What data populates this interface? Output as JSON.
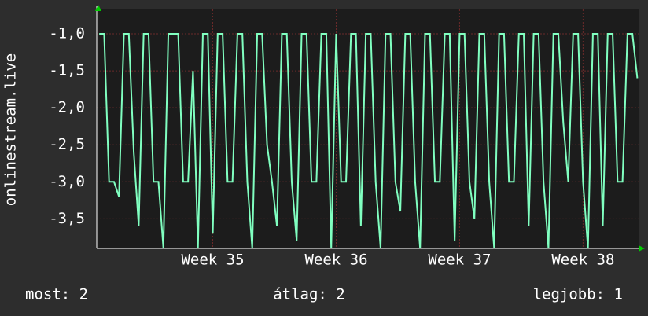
{
  "chart_data": {
    "type": "line",
    "y_label": "onlinestream.live",
    "color": "#80ffc0",
    "grid": true,
    "x": [
      34.08,
      34.12,
      34.16,
      34.2,
      34.24,
      34.28,
      34.32,
      34.36,
      34.4,
      34.44,
      34.48,
      34.52,
      34.56,
      34.6,
      34.64,
      34.68,
      34.72,
      34.76,
      34.8,
      34.84,
      34.88,
      34.92,
      34.96,
      35,
      35.04,
      35.08,
      35.12,
      35.16,
      35.2,
      35.24,
      35.28,
      35.32,
      35.36,
      35.4,
      35.44,
      35.48,
      35.52,
      35.56,
      35.6,
      35.64,
      35.68,
      35.72,
      35.76,
      35.8,
      35.84,
      35.88,
      35.92,
      35.96,
      36,
      36.04,
      36.08,
      36.12,
      36.16,
      36.2,
      36.24,
      36.28,
      36.32,
      36.36,
      36.4,
      36.44,
      36.48,
      36.52,
      36.56,
      36.6,
      36.64,
      36.68,
      36.72,
      36.76,
      36.8,
      36.84,
      36.88,
      36.92,
      36.96,
      37,
      37.04,
      37.08,
      37.12,
      37.16,
      37.2,
      37.24,
      37.28,
      37.32,
      37.36,
      37.4,
      37.44,
      37.48,
      37.52,
      37.56,
      37.6,
      37.64,
      37.68,
      37.72,
      37.76,
      37.8,
      37.84,
      37.88,
      37.92,
      37.96,
      38,
      38.04,
      38.08,
      38.12,
      38.16,
      38.2,
      38.24,
      38.28,
      38.32,
      38.36,
      38.4,
      38.44
    ],
    "values": [
      -1,
      -1,
      -3,
      -3,
      -3.2,
      -1,
      -1,
      -2.6,
      -3.6,
      -1,
      -1,
      -3,
      -3,
      -3.9,
      -1,
      -1,
      -1,
      -3,
      -3,
      -1.5,
      -3.9,
      -1,
      -1,
      -3.7,
      -1,
      -1,
      -3,
      -3,
      -1,
      -1,
      -3,
      -3.9,
      -1,
      -1,
      -2.5,
      -3,
      -3.6,
      -1,
      -1,
      -3,
      -3.8,
      -1,
      -1,
      -3,
      -3,
      -1,
      -1,
      -3.9,
      -1,
      -3,
      -3,
      -1,
      -1,
      -3.6,
      -1,
      -1,
      -3,
      -3.9,
      -1,
      -1,
      -3,
      -3.4,
      -1,
      -1,
      -3,
      -3.9,
      -1,
      -1,
      -3,
      -3,
      -1,
      -1,
      -3.8,
      -1,
      -1,
      -3,
      -3.5,
      -1,
      -1,
      -3,
      -3.9,
      -1,
      -1,
      -3,
      -3,
      -1,
      -1,
      -3.6,
      -1,
      -1,
      -3,
      -3.9,
      -1,
      -1,
      -2.2,
      -3,
      -1,
      -1,
      -3,
      -3.9,
      -1,
      -1,
      -3.6,
      -1,
      -1,
      -3,
      -3,
      -1,
      -1,
      -1.6
    ],
    "xlim": [
      34.06,
      38.45
    ],
    "xticks": [
      {
        "value": 35,
        "label": "Week 35"
      },
      {
        "value": 36,
        "label": "Week 36"
      },
      {
        "value": 37,
        "label": "Week 37"
      },
      {
        "value": 38,
        "label": "Week 38"
      }
    ],
    "ylim": [
      -3.9,
      -0.67
    ],
    "yticks": [
      {
        "value": -1,
        "label": "-1,0"
      },
      {
        "value": -1.5,
        "label": "-1,5"
      },
      {
        "value": -2,
        "label": "-2,0"
      },
      {
        "value": -2.5,
        "label": "-2,5"
      },
      {
        "value": -3,
        "label": "-3,0"
      },
      {
        "value": -3.5,
        "label": "-3,5"
      }
    ],
    "stats": [
      "most: 2",
      "átlag: 2",
      "legjobb: 1"
    ]
  }
}
